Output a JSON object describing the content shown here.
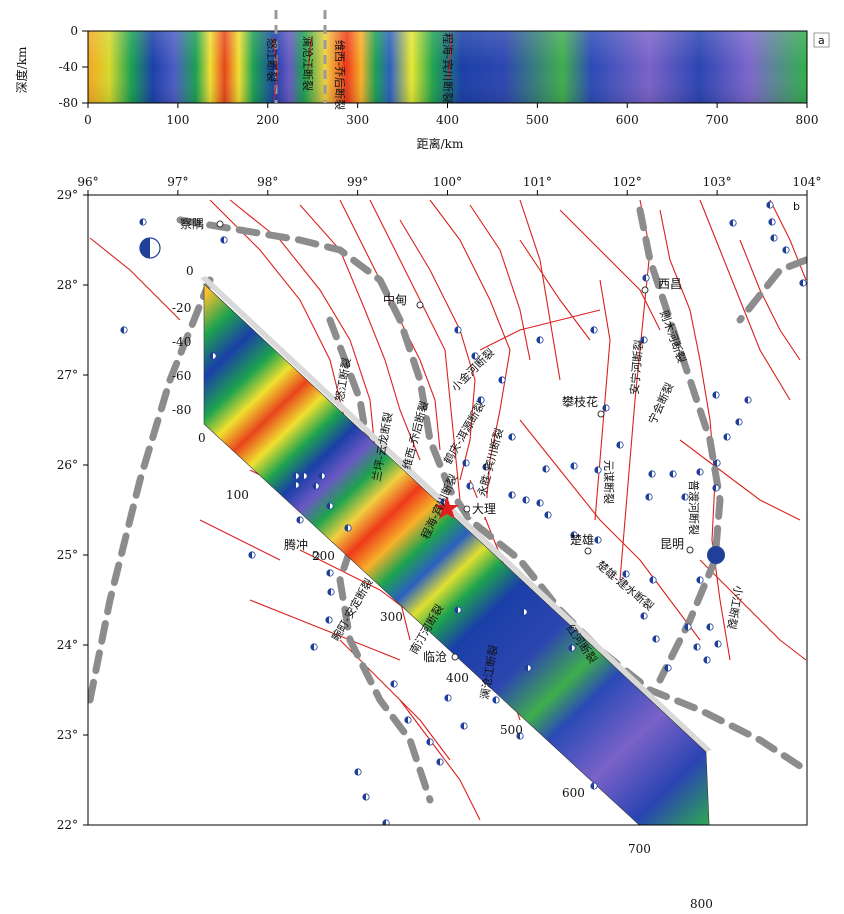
{
  "panel_a": {
    "tag": "a",
    "ylabel": "深度/km",
    "xlabel": "距离/km",
    "yticks": [
      "0",
      "-40",
      "-80"
    ],
    "xticks": [
      "0",
      "100",
      "200",
      "300",
      "400",
      "500",
      "600",
      "700",
      "800"
    ],
    "profile_labels": [
      "怒江断裂",
      "澜沧江断裂",
      "维西-乔后断裂",
      "程海-宾川断裂"
    ]
  },
  "panel_b": {
    "tag": "b",
    "lon_ticks": [
      "96°",
      "97°",
      "98°",
      "99°",
      "100°",
      "101°",
      "102°",
      "103°",
      "104°"
    ],
    "lat_ticks": [
      "29°",
      "28°",
      "27°",
      "26°",
      "25°",
      "24°",
      "23°",
      "22°"
    ],
    "cities": [
      "察隅",
      "中甸",
      "西昌",
      "攀枝花",
      "大理",
      "楚雄",
      "昆明",
      "腾冲",
      "临沧"
    ],
    "faults": [
      "怒江断裂",
      "兰坪-云龙断裂",
      "维西-乔后断裂",
      "鹤庆-洱源断裂",
      "程海-宾川断裂",
      "小金河断裂",
      "永胜-宾川断裂",
      "安宁河断裂",
      "则木河断裂",
      "元谋断裂",
      "宁会断裂",
      "普渡河断裂",
      "小江断裂",
      "楚雄-建水断裂",
      "红河断裂",
      "澜沧江断裂",
      "南汀河断裂",
      "畹町-安定断裂"
    ],
    "strip_depth_ticks": [
      "0",
      "-20",
      "-40",
      "-60",
      "-80"
    ],
    "strip_distance_ticks": [
      "100",
      "200",
      "300",
      "400",
      "500",
      "600",
      "700",
      "800"
    ],
    "strip_zero": "0"
  },
  "colors": {
    "fault": "#d8221e",
    "boundary": "#8c8c8c",
    "station": "#1f3f9a"
  }
}
